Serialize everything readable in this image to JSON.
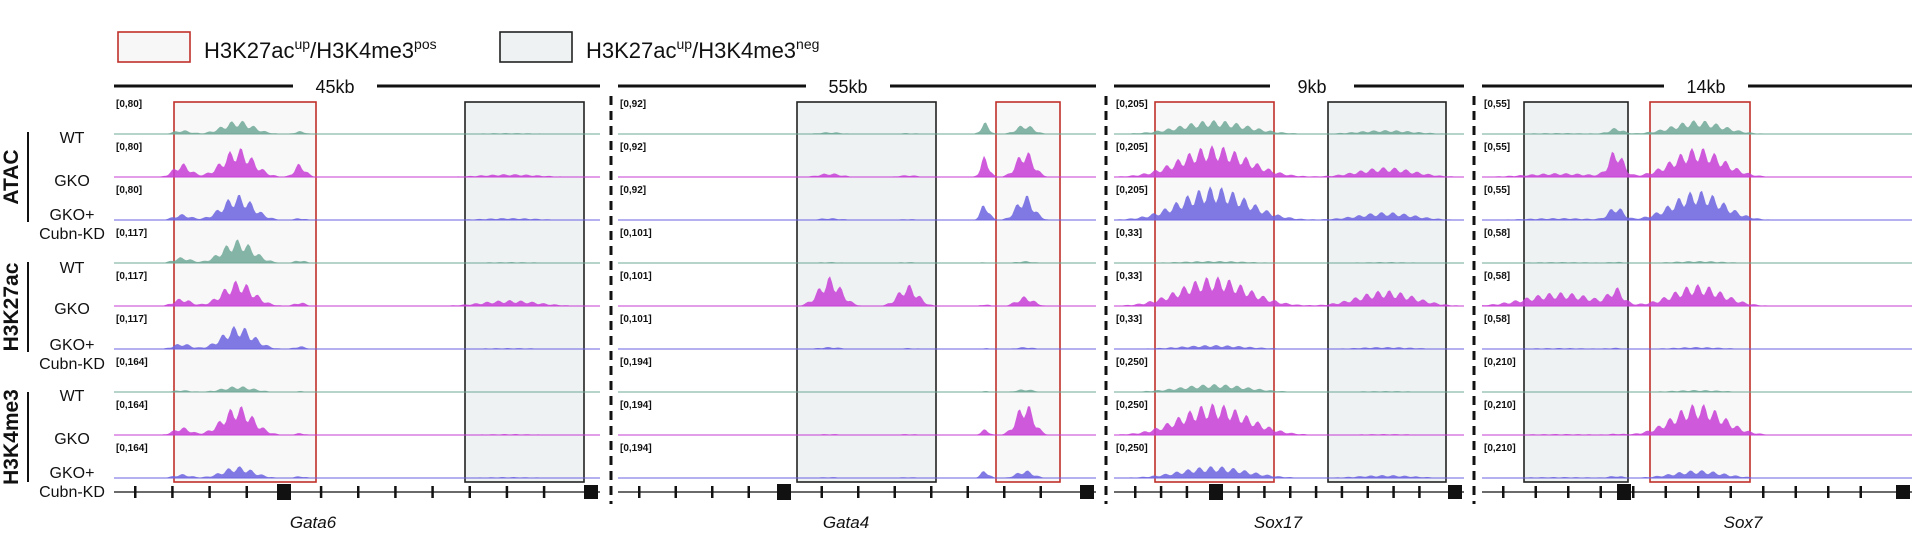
{
  "legend": [
    {
      "base": "H3K27ac",
      "sup1": "up",
      "mid": "/H3K4me3",
      "sup2": "pos",
      "box": "red"
    },
    {
      "base": "H3K27ac",
      "sup1": "up",
      "mid": "/H3K4me3",
      "sup2": "neg",
      "box": "black"
    }
  ],
  "groups": [
    "ATAC",
    "H3K27ac",
    "H3K4me3"
  ],
  "samples": [
    {
      "line1": "WT",
      "line2": ""
    },
    {
      "line1": "GKO",
      "line2": ""
    },
    {
      "line1": "GKO+",
      "line2": "Cubn-KD"
    }
  ],
  "loci": [
    {
      "name": "Gata6",
      "scale": "45kb",
      "ranges": [
        "[0,80]",
        "[0,80]",
        "[0,80]",
        "[0,117]",
        "[0,117]",
        "[0,117]",
        "[0,164]",
        "[0,164]",
        "[0,164]"
      ]
    },
    {
      "name": "Gata4",
      "scale": "55kb",
      "ranges": [
        "[0,92]",
        "[0,92]",
        "[0,92]",
        "[0,101]",
        "[0,101]",
        "[0,101]",
        "[0,194]",
        "[0,194]",
        "[0,194]"
      ]
    },
    {
      "name": "Sox17",
      "scale": "9kb",
      "ranges": [
        "[0,205]",
        "[0,205]",
        "[0,205]",
        "[0,33]",
        "[0,33]",
        "[0,33]",
        "[0,250]",
        "[0,250]",
        "[0,250]"
      ]
    },
    {
      "name": "Sox7",
      "scale": "14kb",
      "ranges": [
        "[0,55]",
        "[0,55]",
        "[0,55]",
        "[0,58]",
        "[0,58]",
        "[0,58]",
        "[0,210]",
        "[0,210]",
        "[0,210]"
      ]
    }
  ],
  "colors": {
    "wt": "#6fa896",
    "gko": "#c73ed6",
    "kd": "#6b63e0",
    "red_box": "#c0302a",
    "black_box": "#222222",
    "box_fill": "#eef2f3"
  }
}
